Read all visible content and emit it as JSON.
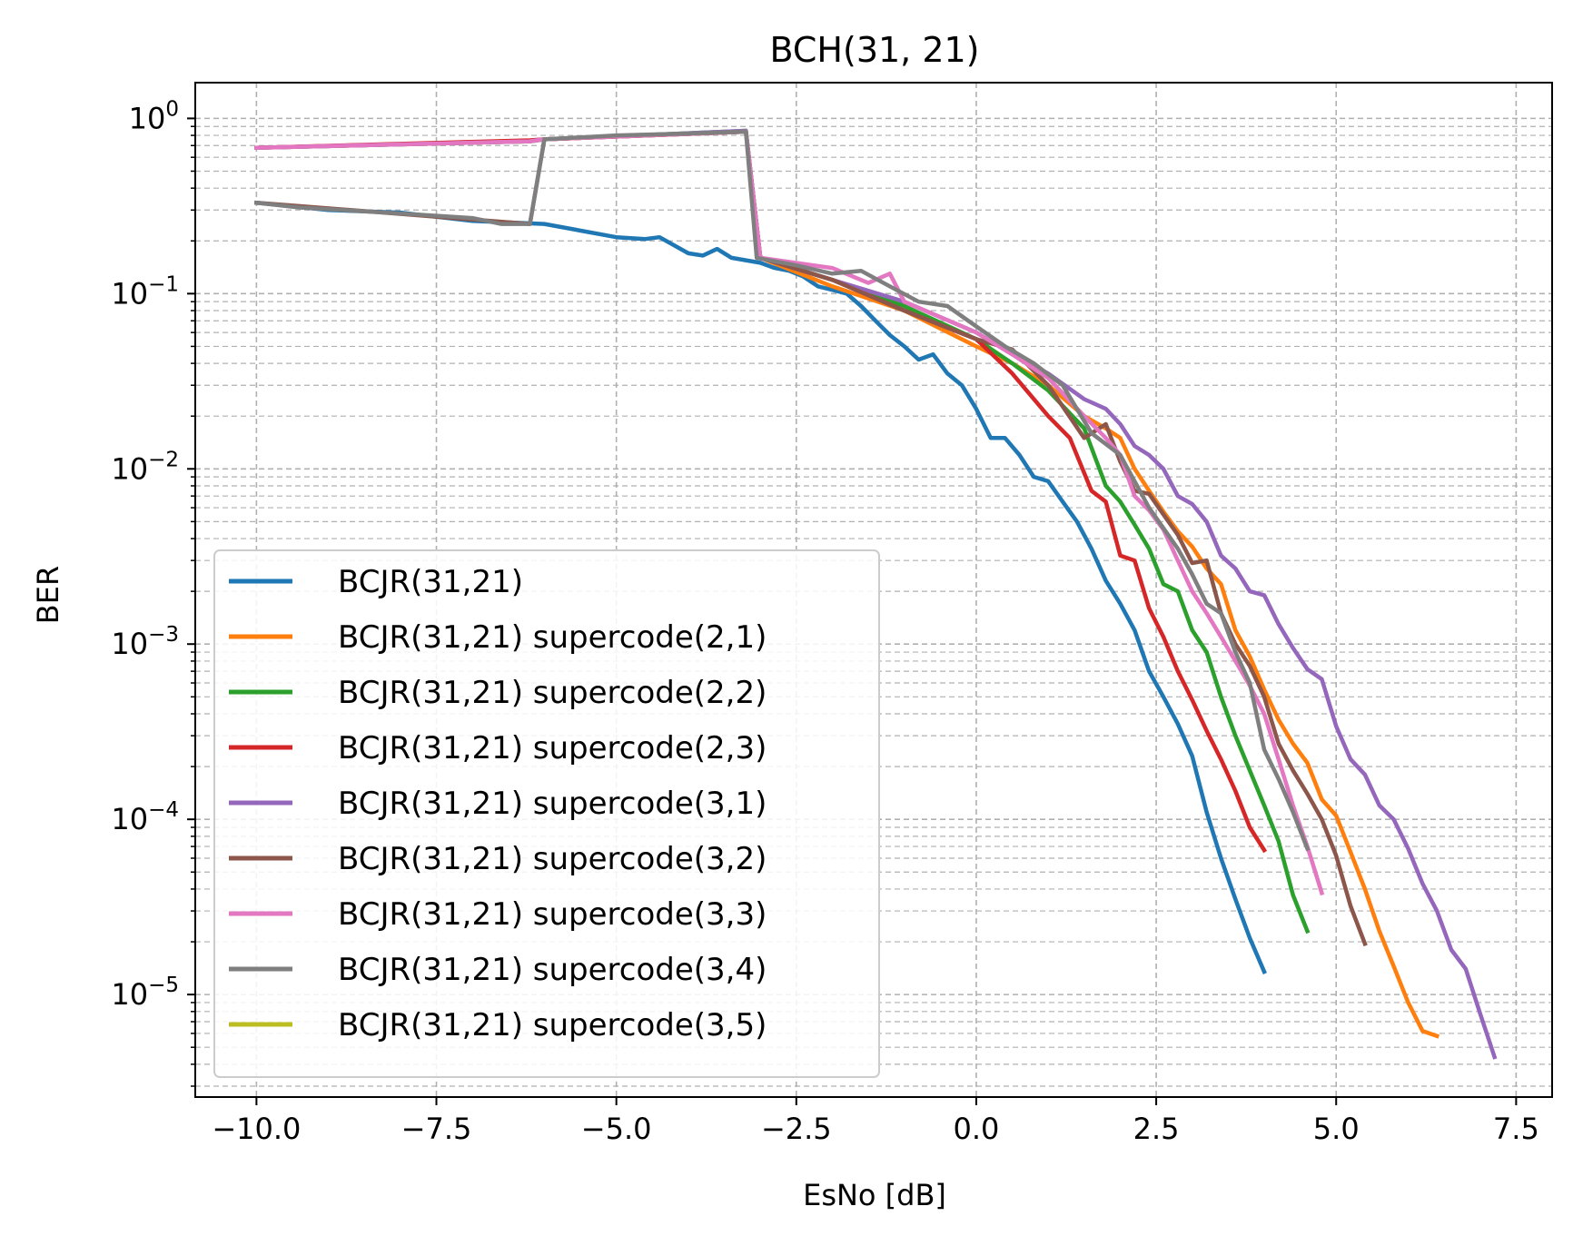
{
  "chart_data": {
    "type": "line",
    "title": "BCH(31, 21)",
    "xlabel": "EsNo [dB]",
    "ylabel": "BER",
    "xlim": [
      -10.85,
      8.0
    ],
    "ylim": [
      2.6e-06,
      1.6
    ],
    "yscale": "log",
    "grid": "both (dashed)",
    "legend_position": "lower-left",
    "x_ticks": [
      {
        "value": -10.0,
        "label": "−10.0"
      },
      {
        "value": -7.5,
        "label": "−7.5"
      },
      {
        "value": -5.0,
        "label": "−5.0"
      },
      {
        "value": -2.5,
        "label": "−2.5"
      },
      {
        "value": 0.0,
        "label": "0.0"
      },
      {
        "value": 2.5,
        "label": "2.5"
      },
      {
        "value": 5.0,
        "label": "5.0"
      },
      {
        "value": 7.5,
        "label": "7.5"
      }
    ],
    "y_ticks": [
      {
        "value": 1,
        "base": "10",
        "exp": "0"
      },
      {
        "value": 0.1,
        "base": "10",
        "exp": "−1"
      },
      {
        "value": 0.01,
        "base": "10",
        "exp": "−2"
      },
      {
        "value": 0.001,
        "base": "10",
        "exp": "−3"
      },
      {
        "value": 0.0001,
        "base": "10",
        "exp": "−4"
      },
      {
        "value": 1e-05,
        "base": "10",
        "exp": "−5"
      }
    ],
    "series": [
      {
        "name": "BCJR(31,21)",
        "color": "#1f77b4",
        "x": [
          -10,
          -9,
          -8,
          -7,
          -6,
          -5,
          -4.6,
          -4.4,
          -4,
          -3.8,
          -3.6,
          -3.4,
          -3.2,
          -3,
          -2.8,
          -2.6,
          -2.4,
          -2.2,
          -2,
          -1.8,
          -1.6,
          -1.4,
          -1.2,
          -1,
          -0.8,
          -0.6,
          -0.4,
          -0.2,
          0,
          0.2,
          0.4,
          0.6,
          0.8,
          1,
          1.2,
          1.4,
          1.6,
          1.8,
          2,
          2.2,
          2.4,
          2.6,
          2.8,
          3,
          3.2,
          3.4,
          3.6,
          3.8,
          4
        ],
        "y": [
          0.33,
          0.3,
          0.29,
          0.26,
          0.25,
          0.21,
          0.205,
          0.21,
          0.17,
          0.165,
          0.18,
          0.16,
          0.155,
          0.15,
          0.14,
          0.135,
          0.125,
          0.11,
          0.105,
          0.1,
          0.085,
          0.07,
          0.058,
          0.05,
          0.042,
          0.045,
          0.035,
          0.03,
          0.022,
          0.015,
          0.015,
          0.012,
          0.009,
          0.0085,
          0.0065,
          0.005,
          0.0035,
          0.0023,
          0.0017,
          0.0012,
          0.0007,
          0.0005,
          0.00035,
          0.00023,
          0.00011,
          6e-05,
          3.5e-05,
          2.1e-05,
          1.35e-05
        ]
      },
      {
        "name": "BCJR(31,21) supercode(2,1)",
        "color": "#ff7f0e",
        "x": [
          -10,
          -6.2,
          -6,
          -3.2,
          -3,
          -2,
          -1,
          0,
          0.5,
          1,
          1.5,
          1.8,
          2,
          2.2,
          2.4,
          2.6,
          2.8,
          3,
          3.2,
          3.4,
          3.6,
          3.8,
          4,
          4.2,
          4.4,
          4.6,
          4.8,
          5,
          5.2,
          5.4,
          5.6,
          5.8,
          6,
          6.2,
          6.4
        ],
        "y": [
          0.68,
          0.74,
          0.76,
          0.84,
          0.16,
          0.11,
          0.08,
          0.05,
          0.04,
          0.03,
          0.02,
          0.017,
          0.015,
          0.01,
          0.0075,
          0.0057,
          0.0044,
          0.0036,
          0.0027,
          0.0022,
          0.0012,
          0.00085,
          0.00055,
          0.00037,
          0.00027,
          0.00021,
          0.00013,
          0.000105,
          6.5e-05,
          4e-05,
          2.3e-05,
          1.45e-05,
          9e-06,
          6.2e-06,
          5.8e-06
        ]
      },
      {
        "name": "BCJR(31,21) supercode(2,2)",
        "color": "#2ca02c",
        "x": [
          -10,
          -6.2,
          -6,
          -3.2,
          -3,
          -2,
          -1,
          0,
          0.5,
          1,
          1.5,
          1.8,
          2,
          2.2,
          2.4,
          2.6,
          2.8,
          3,
          3.2,
          3.4,
          3.6,
          3.8,
          4,
          4.2,
          4.4,
          4.6
        ],
        "y": [
          0.68,
          0.74,
          0.76,
          0.85,
          0.16,
          0.12,
          0.085,
          0.055,
          0.04,
          0.028,
          0.017,
          0.008,
          0.0065,
          0.0048,
          0.0035,
          0.0022,
          0.002,
          0.0012,
          0.0009,
          0.0005,
          0.0003,
          0.00019,
          0.00012,
          7.5e-05,
          3.7e-05,
          2.3e-05
        ]
      },
      {
        "name": "BCJR(31,21) supercode(2,3)",
        "color": "#d62728",
        "x": [
          -10,
          -6.2,
          -6,
          -3.2,
          -3,
          -2,
          -1,
          0,
          0.5,
          1,
          1.3,
          1.6,
          1.8,
          2,
          2.2,
          2.4,
          2.6,
          2.8,
          3,
          3.2,
          3.4,
          3.6,
          3.8,
          4
        ],
        "y": [
          0.68,
          0.75,
          0.76,
          0.84,
          0.16,
          0.12,
          0.08,
          0.055,
          0.035,
          0.02,
          0.015,
          0.0075,
          0.0065,
          0.0032,
          0.003,
          0.0016,
          0.0011,
          0.0007,
          0.00048,
          0.00032,
          0.00022,
          0.000145,
          9e-05,
          6.67e-05
        ]
      },
      {
        "name": "BCJR(31,21) supercode(3,1)",
        "color": "#9467bd",
        "x": [
          -10,
          -6.2,
          -6,
          -3.2,
          -3,
          -2,
          -1,
          0,
          0.5,
          1,
          1.5,
          1.8,
          2,
          2.2,
          2.4,
          2.6,
          2.8,
          3,
          3.2,
          3.4,
          3.6,
          3.8,
          4,
          4.2,
          4.4,
          4.6,
          4.8,
          5,
          5.2,
          5.4,
          5.6,
          5.8,
          6,
          6.2,
          6.4,
          6.6,
          6.8,
          7,
          7.2
        ],
        "y": [
          0.68,
          0.74,
          0.76,
          0.85,
          0.16,
          0.12,
          0.09,
          0.06,
          0.045,
          0.035,
          0.025,
          0.022,
          0.018,
          0.0135,
          0.012,
          0.01,
          0.007,
          0.0063,
          0.005,
          0.0032,
          0.0027,
          0.002,
          0.0019,
          0.0013,
          0.00095,
          0.00072,
          0.00063,
          0.00034,
          0.00022,
          0.00018,
          0.00012,
          0.0001,
          6.8e-05,
          4.3e-05,
          3e-05,
          1.8e-05,
          1.4e-05,
          7.8e-06,
          4.4e-06
        ]
      },
      {
        "name": "BCJR(31,21) supercode(3,2)",
        "color": "#8c564b",
        "x": [
          -10,
          -6.2,
          -6,
          -3.2,
          -3,
          -2,
          -1,
          0,
          0.5,
          1,
          1.5,
          1.8,
          2,
          2.2,
          2.4,
          2.6,
          2.8,
          3,
          3.2,
          3.4,
          3.6,
          3.8,
          4,
          4.2,
          4.4,
          4.6,
          4.8,
          5,
          5.2,
          5.4
        ],
        "y": [
          0.33,
          0.25,
          0.76,
          0.84,
          0.16,
          0.12,
          0.08,
          0.055,
          0.048,
          0.03,
          0.015,
          0.018,
          0.011,
          0.0075,
          0.0072,
          0.0055,
          0.0042,
          0.0029,
          0.003,
          0.0015,
          0.001,
          0.00075,
          0.0005,
          0.00027,
          0.00019,
          0.00014,
          0.0001,
          6.2e-05,
          3.2e-05,
          1.95e-05
        ]
      },
      {
        "name": "BCJR(31,21) supercode(3,3)",
        "color": "#e377c2",
        "x": [
          -10,
          -6.2,
          -6,
          -3.2,
          -3,
          -2,
          -1.5,
          -1.2,
          -1,
          0,
          0.5,
          1,
          1.5,
          1.8,
          2,
          2.2,
          2.4,
          2.6,
          2.8,
          3,
          3.2,
          3.4,
          3.6,
          3.8,
          4,
          4.2,
          4.4,
          4.6,
          4.8
        ],
        "y": [
          0.68,
          0.74,
          0.76,
          0.84,
          0.16,
          0.14,
          0.115,
          0.13,
          0.09,
          0.06,
          0.045,
          0.033,
          0.02,
          0.015,
          0.012,
          0.007,
          0.0058,
          0.0045,
          0.003,
          0.002,
          0.0015,
          0.0011,
          0.0008,
          0.00058,
          0.0004,
          0.00022,
          0.00012,
          7e-05,
          3.8e-05
        ]
      },
      {
        "name": "BCJR(31,21) supercode(3,4)",
        "color": "#7f7f7f",
        "x": [
          -10,
          -9.4,
          -8.8,
          -8.2,
          -7.6,
          -7,
          -6.6,
          -6.2,
          -6,
          -5,
          -4,
          -3.2,
          -3.05,
          -2.5,
          -2,
          -1.6,
          -1.2,
          -0.8,
          -0.4,
          0,
          0.4,
          0.8,
          1.2,
          1.6,
          2,
          2.4,
          2.8,
          3,
          3.2,
          3.4,
          3.6,
          3.8,
          4,
          4.2,
          4.4,
          4.6
        ],
        "y": [
          0.33,
          0.31,
          0.3,
          0.29,
          0.28,
          0.27,
          0.25,
          0.25,
          0.76,
          0.8,
          0.82,
          0.84,
          0.16,
          0.145,
          0.13,
          0.135,
          0.11,
          0.09,
          0.085,
          0.065,
          0.05,
          0.04,
          0.03,
          0.016,
          0.012,
          0.006,
          0.0035,
          0.0025,
          0.0017,
          0.0015,
          0.0009,
          0.0006,
          0.00025,
          0.00017,
          0.00011,
          6.8e-05
        ]
      },
      {
        "name": "BCJR(31,21) supercode(3,5)",
        "color": "#bcbd22",
        "x": [],
        "y": []
      }
    ]
  }
}
